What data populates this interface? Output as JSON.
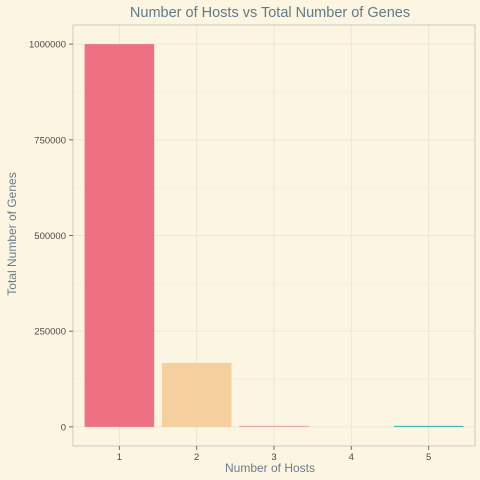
{
  "chart_data": {
    "type": "bar",
    "title": "Number of Hosts vs Total Number of Genes",
    "xlabel": "Number of Hosts",
    "ylabel": "Total Number of Genes",
    "categories": [
      "1",
      "2",
      "3",
      "4",
      "5"
    ],
    "values": [
      1000000,
      167000,
      2500,
      0,
      2500
    ],
    "bar_colors": [
      "#ed7180",
      "#f6cf9e",
      "#e8a0a4",
      "#c6c6c6",
      "#20b2aa"
    ],
    "y_ticks": [
      0,
      250000,
      500000,
      750000,
      1000000
    ],
    "y_tick_labels": [
      "0",
      "250000",
      "500000",
      "750000",
      "1000000"
    ],
    "ylim": [
      -50000,
      1050000
    ],
    "grid": true,
    "legend": "none"
  },
  "colors": {
    "background": "#fcf5e1",
    "grid": "#ebe6d6",
    "title": "#607a8c"
  }
}
